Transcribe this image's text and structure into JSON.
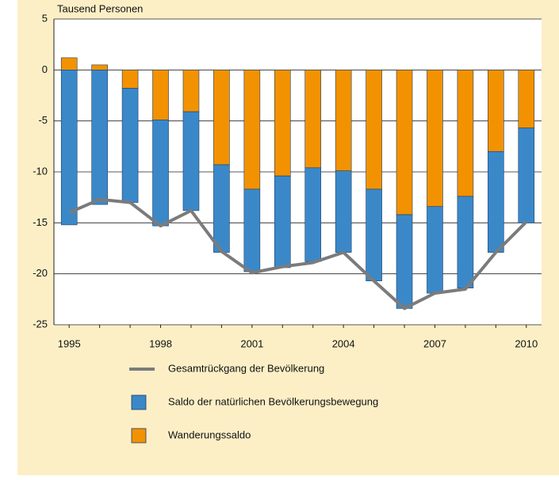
{
  "chart_data": {
    "type": "bar",
    "stacked": true,
    "ylabel": "Tausend Personen",
    "categories": [
      "1995",
      null,
      null,
      "1998",
      null,
      null,
      "2001",
      null,
      null,
      "2004",
      null,
      null,
      "2007",
      null,
      null,
      "2010"
    ],
    "ylim": [
      -25,
      5
    ],
    "yticks": [
      5,
      0,
      -5,
      -10,
      -15,
      -20,
      -25
    ],
    "grid": true,
    "series": [
      {
        "name": "Gesamtrückgang der Bevölkerung",
        "type": "line",
        "color": "#7b7b7b",
        "values": [
          -14.0,
          -12.7,
          -13.0,
          -15.3,
          -13.8,
          -17.8,
          -19.9,
          -19.3,
          -18.9,
          -17.9,
          -20.7,
          -23.4,
          -21.9,
          -21.5,
          -17.9,
          -14.9
        ]
      },
      {
        "name": "Saldo der natürlichen Bevölkerungsbewegung",
        "type": "bar",
        "color": "#3b88c9",
        "values": [
          -15.2,
          -13.2,
          -11.2,
          -10.4,
          -9.7,
          -8.6,
          -8.1,
          -9.0,
          -9.2,
          -8.0,
          -9.0,
          -9.2,
          -8.5,
          -9.0,
          -9.9,
          -9.3
        ]
      },
      {
        "name": "Wanderungssaldo",
        "type": "bar",
        "color": "#f39200",
        "values": [
          1.2,
          0.5,
          -1.8,
          -4.9,
          -4.1,
          -9.3,
          -11.7,
          -10.4,
          -9.6,
          -9.9,
          -11.7,
          -14.2,
          -13.4,
          -12.4,
          -8.0,
          -5.7
        ]
      }
    ]
  }
}
